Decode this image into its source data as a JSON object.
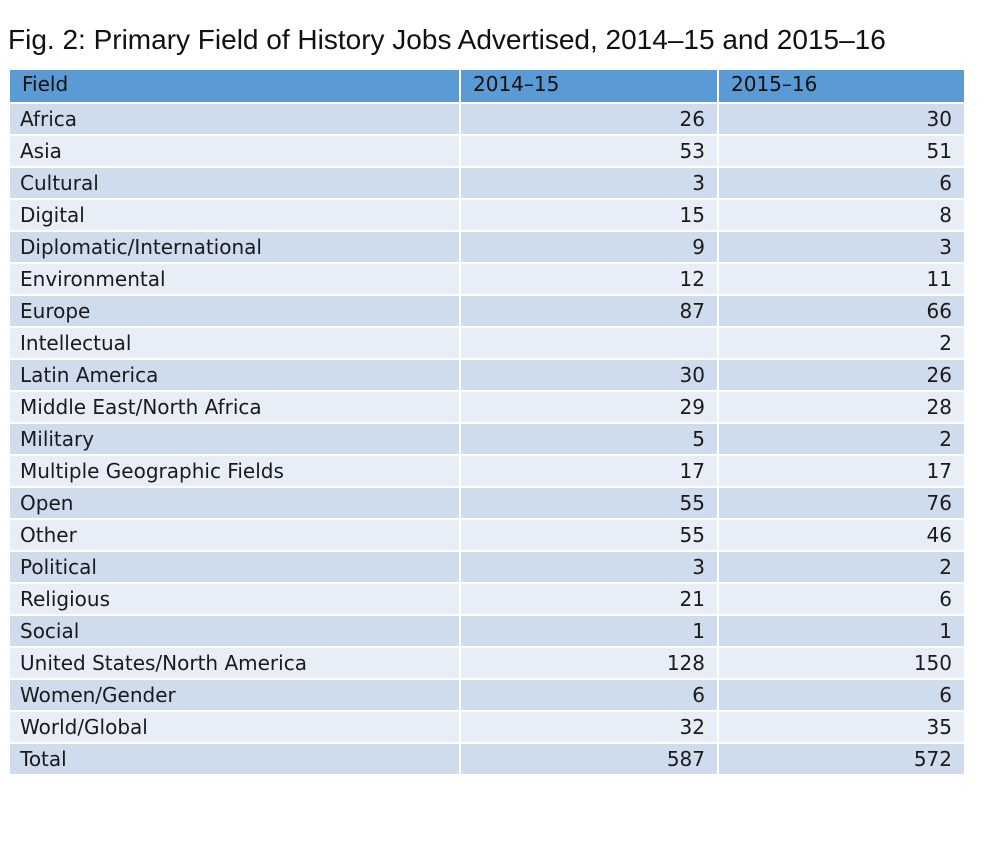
{
  "title": "Fig. 2: Primary Field of History Jobs Advertised, 2014–15 and 2015–16",
  "chart_data": {
    "type": "table",
    "title": "Fig. 2: Primary Field of History Jobs Advertised, 2014–15 and 2015–16",
    "columns": [
      "Field",
      "2014–15",
      "2015–16"
    ],
    "rows": [
      [
        "Africa",
        "26",
        "30"
      ],
      [
        "Asia",
        "53",
        "51"
      ],
      [
        "Cultural",
        "3",
        "6"
      ],
      [
        "Digital",
        "15",
        "8"
      ],
      [
        "Diplomatic/International",
        "9",
        "3"
      ],
      [
        "Environmental",
        "12",
        "11"
      ],
      [
        "Europe",
        "87",
        "66"
      ],
      [
        "Intellectual",
        "",
        "2"
      ],
      [
        "Latin America",
        "30",
        "26"
      ],
      [
        "Middle East/North Africa",
        "29",
        "28"
      ],
      [
        "Military",
        "5",
        "2"
      ],
      [
        "Multiple Geographic Fields",
        "17",
        "17"
      ],
      [
        "Open",
        "55",
        "76"
      ],
      [
        "Other",
        "55",
        "46"
      ],
      [
        "Political",
        "3",
        "2"
      ],
      [
        "Religious",
        "21",
        "6"
      ],
      [
        "Social",
        "1",
        "1"
      ],
      [
        "United States/North America",
        "128",
        "150"
      ],
      [
        "Women/Gender",
        "6",
        "6"
      ],
      [
        "World/Global",
        "32",
        "35"
      ],
      [
        "Total",
        "587",
        "572"
      ]
    ]
  },
  "colors": {
    "header_bg": "#5b9bd5",
    "row_dark": "#cfdcee",
    "row_light": "#e8eef7"
  }
}
